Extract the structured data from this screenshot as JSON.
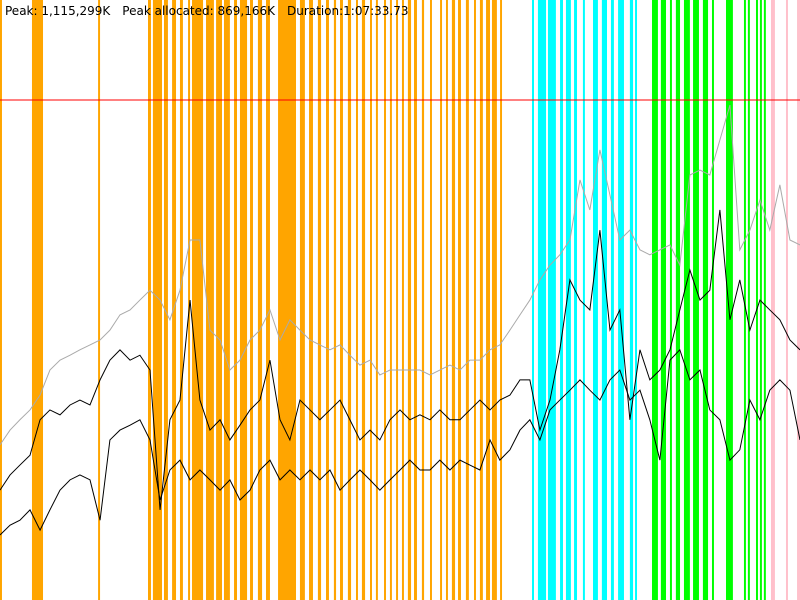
{
  "chart_data": {
    "type": "line",
    "peak": {
      "value": 1115299,
      "label": "Peak: 1,115,299K"
    },
    "peak_allocated": "Peak allocated: 869,166K",
    "duration": "Duration:1:07:33.73",
    "peak_color": "#ff0000",
    "xlim": [
      0,
      4054
    ],
    "ylim": [
      0,
      1338360
    ],
    "x": [
      0,
      51,
      101,
      152,
      203,
      253,
      304,
      355,
      405,
      456,
      507,
      557,
      608,
      659,
      709,
      760,
      811,
      861,
      912,
      963,
      1013,
      1064,
      1115,
      1165,
      1216,
      1267,
      1317,
      1368,
      1419,
      1469,
      1520,
      1571,
      1621,
      1672,
      1723,
      1773,
      1824,
      1875,
      1925,
      1976,
      2027,
      2077,
      2128,
      2179,
      2229,
      2280,
      2331,
      2381,
      2432,
      2483,
      2533,
      2584,
      2635,
      2685,
      2736,
      2787,
      2837,
      2888,
      2939,
      2989,
      3040,
      3091,
      3141,
      3192,
      3243,
      3293,
      3344,
      3395,
      3445,
      3496,
      3547,
      3597,
      3648,
      3699,
      3749,
      3800,
      3851,
      3901,
      3952,
      4003,
      4054
    ],
    "series": [
      {
        "color": "#aaaaaa",
        "values": [
          346000,
          379000,
          402000,
          424000,
          457000,
          513000,
          535000,
          546000,
          558000,
          569000,
          580000,
          602000,
          636000,
          647000,
          669000,
          691000,
          669000,
          625000,
          691000,
          803000,
          803000,
          602000,
          580000,
          513000,
          535000,
          580000,
          602000,
          647000,
          580000,
          625000,
          602000,
          580000,
          569000,
          558000,
          569000,
          546000,
          524000,
          535000,
          502000,
          513000,
          513000,
          513000,
          513000,
          502000,
          513000,
          524000,
          513000,
          535000,
          535000,
          558000,
          569000,
          602000,
          636000,
          669000,
          714000,
          747000,
          770000,
          803000,
          937000,
          870000,
          1004000,
          903000,
          803000,
          825000,
          781000,
          770000,
          781000,
          792000,
          747000,
          948000,
          959000,
          948000,
          1026000,
          1104000,
          781000,
          825000,
          892000,
          825000,
          926000,
          803000,
          792000
        ]
      },
      {
        "color": "#000000",
        "values": [
          245000,
          279000,
          301000,
          323000,
          402000,
          424000,
          413000,
          435000,
          446000,
          435000,
          491000,
          535000,
          558000,
          535000,
          546000,
          513000,
          201000,
          402000,
          446000,
          669000,
          446000,
          379000,
          402000,
          357000,
          390000,
          424000,
          446000,
          535000,
          402000,
          357000,
          446000,
          424000,
          402000,
          424000,
          446000,
          402000,
          357000,
          379000,
          357000,
          402000,
          424000,
          402000,
          413000,
          402000,
          424000,
          402000,
          402000,
          424000,
          446000,
          424000,
          446000,
          457000,
          491000,
          491000,
          379000,
          446000,
          558000,
          714000,
          669000,
          647000,
          825000,
          602000,
          647000,
          402000,
          558000,
          491000,
          513000,
          558000,
          647000,
          736000,
          669000,
          691000,
          870000,
          625000,
          714000,
          602000,
          669000,
          647000,
          625000,
          580000,
          558000
        ]
      },
      {
        "color": "#000000",
        "values": [
          145000,
          167000,
          178000,
          201000,
          156000,
          201000,
          245000,
          268000,
          279000,
          268000,
          178000,
          357000,
          379000,
          390000,
          402000,
          357000,
          223000,
          290000,
          312000,
          268000,
          290000,
          268000,
          245000,
          268000,
          223000,
          245000,
          290000,
          312000,
          268000,
          290000,
          268000,
          290000,
          268000,
          290000,
          245000,
          268000,
          290000,
          268000,
          245000,
          268000,
          290000,
          312000,
          290000,
          290000,
          312000,
          290000,
          312000,
          301000,
          290000,
          357000,
          312000,
          335000,
          379000,
          402000,
          357000,
          424000,
          446000,
          468000,
          491000,
          468000,
          446000,
          491000,
          513000,
          446000,
          468000,
          402000,
          312000,
          535000,
          558000,
          491000,
          513000,
          424000,
          402000,
          312000,
          335000,
          446000,
          402000,
          468000,
          491000,
          468000,
          357000
        ]
      }
    ],
    "event_groups": [
      {
        "color": "#ffa500",
        "intervals": [
          [
            0,
            10
          ],
          [
            162,
            218
          ],
          [
            497,
            507
          ],
          [
            750,
            765
          ],
          [
            775,
            821
          ],
          [
            831,
            851
          ],
          [
            872,
            892
          ],
          [
            912,
            927
          ],
          [
            953,
            963
          ],
          [
            973,
            1029
          ],
          [
            1044,
            1084
          ],
          [
            1095,
            1125
          ],
          [
            1135,
            1165
          ],
          [
            1186,
            1201
          ],
          [
            1216,
            1252
          ],
          [
            1267,
            1282
          ],
          [
            1307,
            1328
          ],
          [
            1348,
            1368
          ],
          [
            1409,
            1500
          ],
          [
            1520,
            1545
          ],
          [
            1566,
            1586
          ],
          [
            1611,
            1627
          ],
          [
            1652,
            1667
          ],
          [
            1692,
            1703
          ],
          [
            1723,
            1738
          ],
          [
            1763,
            1779
          ],
          [
            1804,
            1814
          ],
          [
            1834,
            1850
          ],
          [
            1875,
            1885
          ],
          [
            1905,
            1915
          ],
          [
            1946,
            1956
          ],
          [
            1976,
            1986
          ],
          [
            2007,
            2017
          ],
          [
            2037,
            2047
          ],
          [
            2067,
            2083
          ],
          [
            2098,
            2113
          ],
          [
            2138,
            2149
          ],
          [
            2179,
            2189
          ],
          [
            2230,
            2240
          ],
          [
            2260,
            2270
          ],
          [
            2290,
            2306
          ],
          [
            2321,
            2336
          ],
          [
            2361,
            2376
          ],
          [
            2402,
            2412
          ],
          [
            2432,
            2447
          ],
          [
            2463,
            2483
          ],
          [
            2493,
            2518
          ],
          [
            2534,
            2544
          ]
        ]
      },
      {
        "color": "#00ffff",
        "intervals": [
          [
            2696,
            2706
          ],
          [
            2726,
            2767
          ],
          [
            2777,
            2817
          ],
          [
            2838,
            2853
          ],
          [
            2868,
            2893
          ],
          [
            2909,
            2924
          ],
          [
            2954,
            2964
          ],
          [
            3005,
            3030
          ],
          [
            3050,
            3076
          ],
          [
            3096,
            3111
          ],
          [
            3132,
            3162
          ],
          [
            3192,
            3208
          ],
          [
            3218,
            3228
          ]
        ]
      },
      {
        "color": "#00ff00",
        "intervals": [
          [
            3304,
            3334
          ],
          [
            3349,
            3375
          ],
          [
            3395,
            3405
          ],
          [
            3425,
            3446
          ],
          [
            3466,
            3496
          ],
          [
            3512,
            3542
          ],
          [
            3562,
            3588
          ],
          [
            3608,
            3618
          ],
          [
            3679,
            3714
          ],
          [
            3770,
            3780
          ],
          [
            3790,
            3800
          ],
          [
            3831,
            3841
          ],
          [
            3851,
            3861
          ],
          [
            3871,
            3881
          ]
        ]
      },
      {
        "color": "#ffc0cb",
        "intervals": [
          [
            3907,
            3927
          ],
          [
            3983,
            3993
          ],
          [
            4039,
            4054
          ]
        ]
      }
    ]
  }
}
